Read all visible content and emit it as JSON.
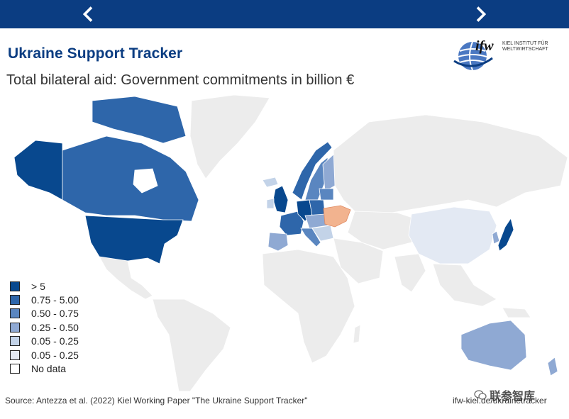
{
  "header": {
    "prev_icon": "chevron-left-icon",
    "next_icon": "chevron-right-icon",
    "bar_color": "#0b3d82"
  },
  "title": "Ukraine Support Tracker",
  "subtitle": "Total bilateral aid: Government commitments in billion €",
  "logo": {
    "mark": "ifw",
    "line1": "KIEL INSTITUT FÜR",
    "line2": "WELTWIRTSCHAFT"
  },
  "legend": [
    {
      "label": "> 5",
      "color": "#08488e"
    },
    {
      "label": "0.75 - 5.00",
      "color": "#2e66aa"
    },
    {
      "label": "0.50 - 0.75",
      "color": "#5a86c0"
    },
    {
      "label": "0.25 - 0.50",
      "color": "#8fa9d3"
    },
    {
      "label": "0.05 - 0.25",
      "color": "#c3d3e8"
    },
    {
      "label": "0.05 - 0.25",
      "color": "#e3e9f3"
    },
    {
      "label": "No data",
      "color": "#ffffff"
    }
  ],
  "colors": {
    "no_data": "#ececec",
    "ukraine": "#f2b38f",
    "ocean": "#ffffff"
  },
  "footer": {
    "source": "Source: Antezza et al. (2022) Kiel Working Paper \"The Ukraine Support Tracker\"",
    "url": "ifw-kiel.de/ukrainetracker",
    "watermark": "联参智库"
  }
}
